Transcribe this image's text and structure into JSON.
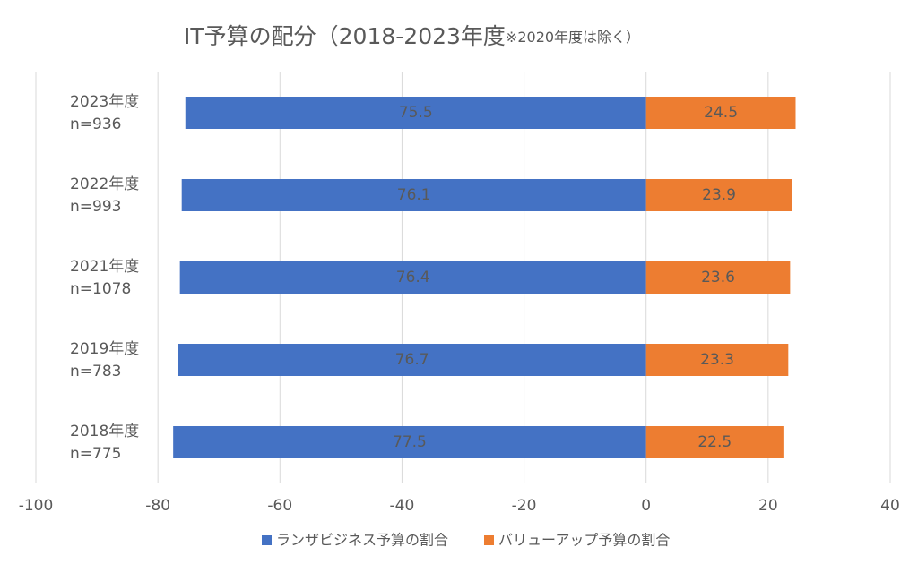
{
  "chart_data": {
    "type": "diverging-bar",
    "orientation": "horizontal",
    "title": "IT予算の配分（2018-2023年度",
    "title_note": "※2020年度は除く）",
    "categories": [
      "2023年度",
      "2022年度",
      "2021年度",
      "2019年度",
      "2018年度"
    ],
    "category_notes": [
      "n=936",
      "n=993",
      "n=1078",
      "n=783",
      "n=775"
    ],
    "series": [
      {
        "name": "ランザビジネス予算の割合",
        "color": "#4472c4",
        "values": [
          -75.5,
          -76.1,
          -76.4,
          -76.7,
          -77.5
        ],
        "value_labels": [
          "75.5",
          "76.1",
          "76.4",
          "76.7",
          "77.5"
        ]
      },
      {
        "name": "バリューアップ予算の割合",
        "color": "#ed7d31",
        "values": [
          24.5,
          23.9,
          23.6,
          23.3,
          22.5
        ]
      }
    ],
    "xlim": [
      -100,
      40
    ],
    "xticks": [
      -100,
      -80,
      -60,
      -40,
      -20,
      0,
      20,
      40
    ],
    "grid": true,
    "legend": "bottom"
  }
}
